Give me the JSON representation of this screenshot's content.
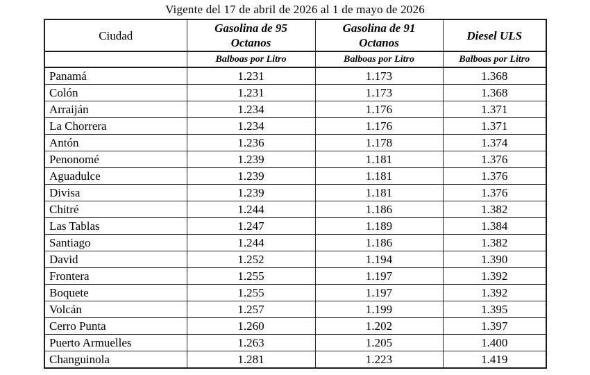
{
  "title": "Vigente del 17 de abril de 2026 al 1 de mayo de 2026",
  "table": {
    "columns": [
      {
        "label": "Ciudad",
        "sublabel": ""
      },
      {
        "label": "Gasolina de 95 Octanos",
        "sublabel": "Balboas por Litro"
      },
      {
        "label": "Gasolina de 91 Octanos",
        "sublabel": "Balboas por Litro"
      },
      {
        "label": "Diesel ULS",
        "sublabel": "Balboas por Litro"
      }
    ],
    "rows": [
      [
        "Panamá",
        "1.231",
        "1.173",
        "1.368"
      ],
      [
        "Colón",
        "1.231",
        "1.173",
        "1.368"
      ],
      [
        "Arraiján",
        "1.234",
        "1.176",
        "1.371"
      ],
      [
        "La Chorrera",
        "1.234",
        "1.176",
        "1.371"
      ],
      [
        "Antón",
        "1.236",
        "1.178",
        "1.374"
      ],
      [
        "Penonomé",
        "1.239",
        "1.181",
        "1.376"
      ],
      [
        "Aguadulce",
        "1.239",
        "1.181",
        "1.376"
      ],
      [
        "Divisa",
        "1.239",
        "1.181",
        "1.376"
      ],
      [
        "Chitré",
        "1.244",
        "1.186",
        "1.382"
      ],
      [
        "Las Tablas",
        "1.247",
        "1.189",
        "1.384"
      ],
      [
        "Santiago",
        "1.244",
        "1.186",
        "1.382"
      ],
      [
        "David",
        "1.252",
        "1.194",
        "1.390"
      ],
      [
        "Frontera",
        "1.255",
        "1.197",
        "1.392"
      ],
      [
        "Boquete",
        "1.255",
        "1.197",
        "1.392"
      ],
      [
        "Volcán",
        "1.257",
        "1.199",
        "1.395"
      ],
      [
        "Cerro Punta",
        "1.260",
        "1.202",
        "1.397"
      ],
      [
        "Puerto Armuelles",
        "1.263",
        "1.205",
        "1.400"
      ],
      [
        "Changuinola",
        "1.281",
        "1.223",
        "1.419"
      ]
    ]
  }
}
